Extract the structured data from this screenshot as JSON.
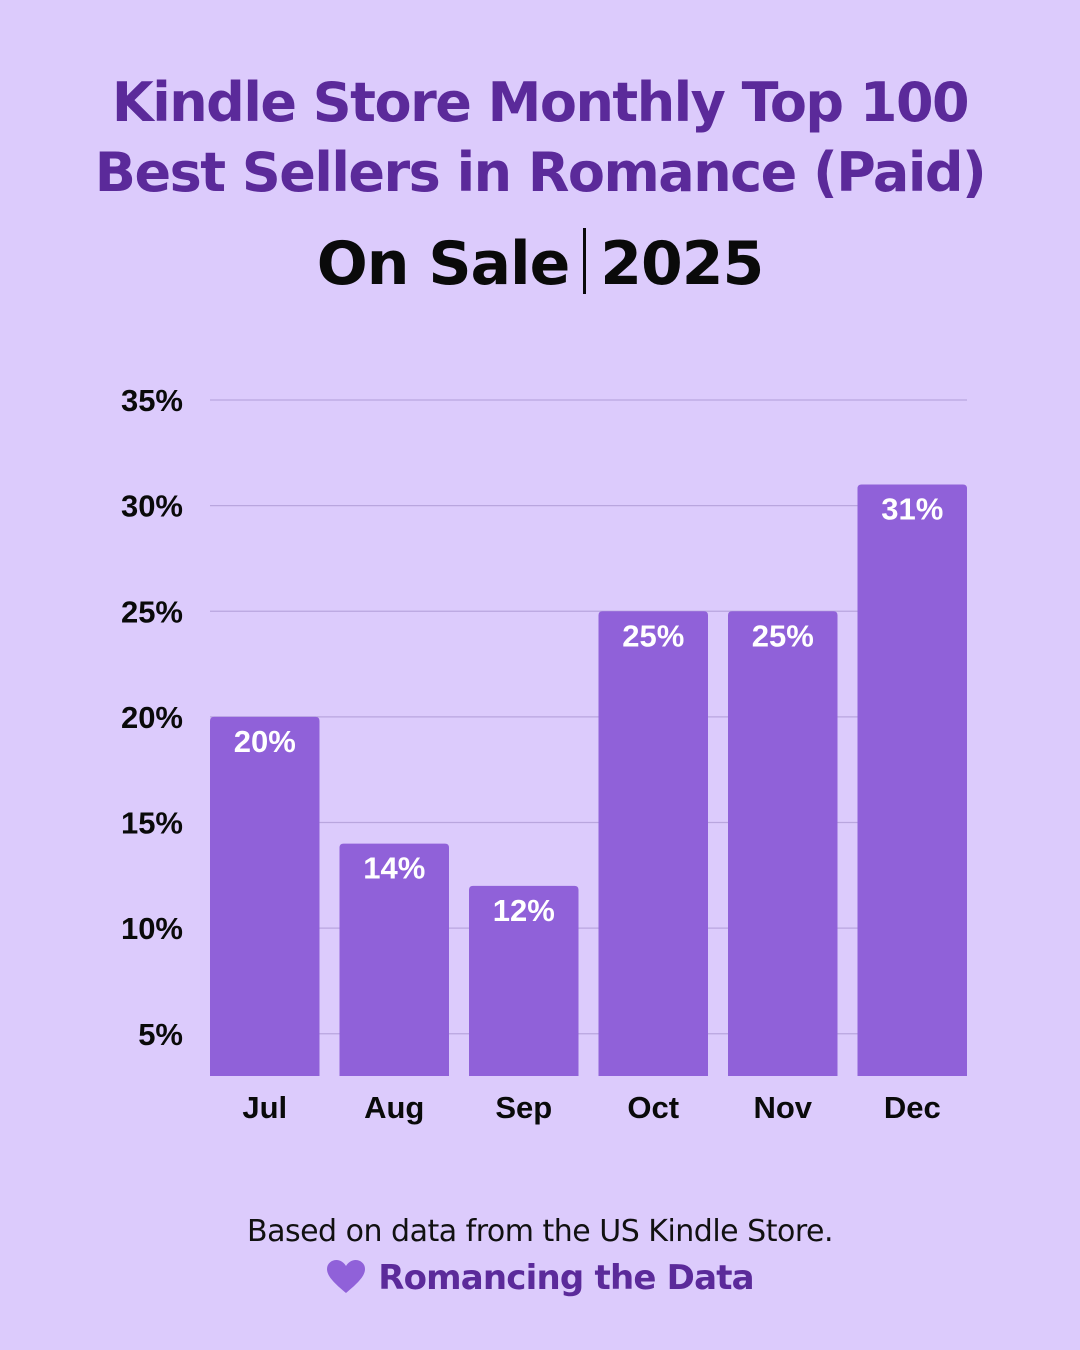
{
  "header": {
    "title_line1": "Kindle Store Monthly Top 100",
    "title_line2": "Best Sellers in Romance (Paid)",
    "subtitle_left": "On Sale",
    "subtitle_right": "2025"
  },
  "footer": {
    "note": "Based on data from the US Kindle Store.",
    "brand": "Romancing the Data",
    "brand_icon": "heart-icon"
  },
  "colors": {
    "background": "#dccbfc",
    "bar": "#9061d9",
    "title": "#5b2a9a",
    "gridline": "#b9a6de"
  },
  "chart_data": {
    "type": "bar",
    "categories": [
      "Jul",
      "Aug",
      "Sep",
      "Oct",
      "Nov",
      "Dec"
    ],
    "values": [
      20,
      14,
      12,
      25,
      25,
      31
    ],
    "data_labels": [
      "20%",
      "14%",
      "12%",
      "25%",
      "25%",
      "31%"
    ],
    "y_ticks": [
      5,
      10,
      15,
      20,
      25,
      30,
      35
    ],
    "y_tick_labels": [
      "5%",
      "10%",
      "15%",
      "20%",
      "25%",
      "30%",
      "35%"
    ],
    "ylim": [
      3,
      35
    ],
    "grid": true,
    "title": "",
    "xlabel": "",
    "ylabel": ""
  }
}
